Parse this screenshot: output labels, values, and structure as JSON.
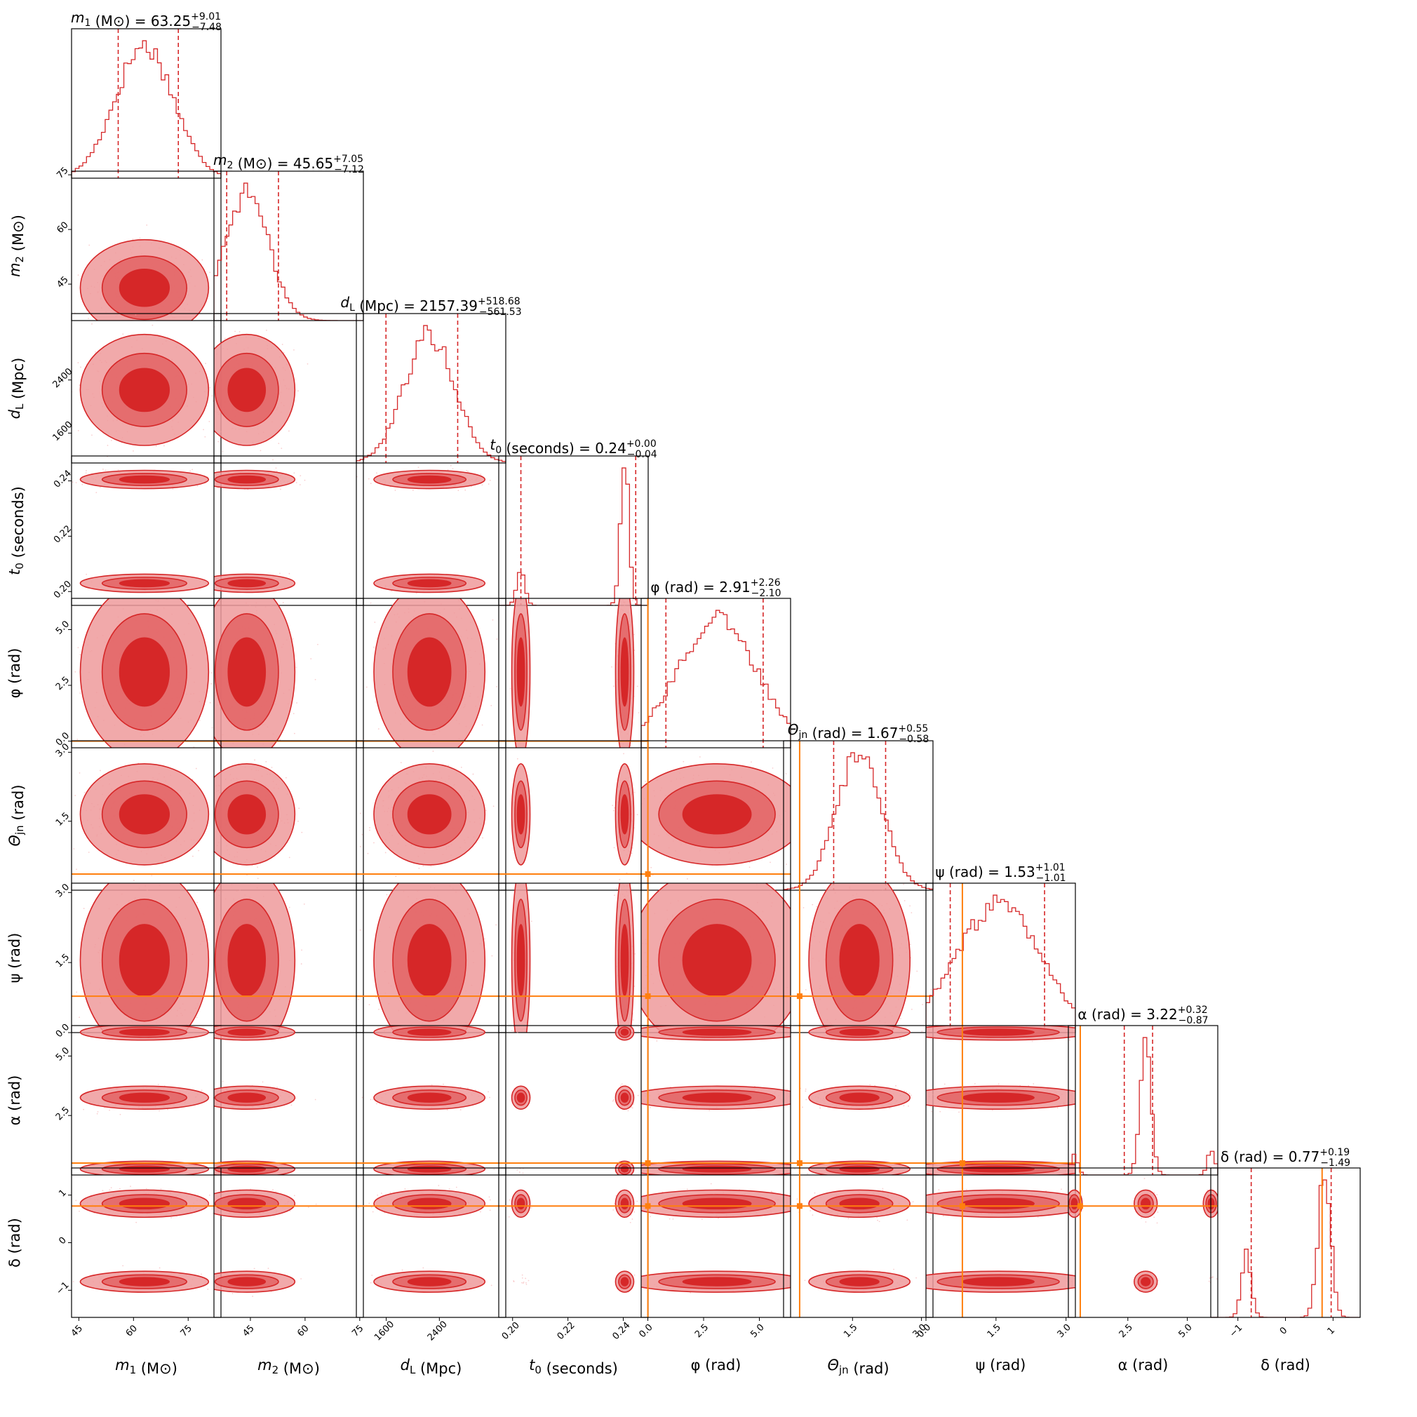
{
  "chart_data": {
    "type": "corner",
    "parameters": [
      {
        "key": "m1",
        "sym": "m",
        "sub": "1",
        "unit": "(M⊙)",
        "range": [
          43,
          84
        ],
        "ticks": [
          45,
          60,
          75
        ],
        "ticklabels": [
          "45",
          "60",
          "75"
        ],
        "median": "63.25",
        "plus": "+9.01",
        "minus": "−7.48",
        "q": [
          55.8,
          72.3
        ],
        "truth": null
      },
      {
        "key": "m2",
        "sym": "m",
        "sub": "2",
        "unit": "(M⊙)",
        "range": [
          35,
          76
        ],
        "ticks": [
          45,
          60,
          75
        ],
        "ticklabels": [
          "45",
          "60",
          "75"
        ],
        "median": "45.65",
        "plus": "+7.05",
        "minus": "−7.12",
        "q": [
          38.5,
          52.7
        ],
        "truth": null
      },
      {
        "key": "dL",
        "sym": "d",
        "sub": "L",
        "unit": "(Mpc)",
        "range": [
          1150,
          3400
        ],
        "ticks": [
          1600,
          2400
        ],
        "ticklabels": [
          "1600",
          "2400"
        ],
        "median": "2157.39",
        "plus": "+518.68",
        "minus": "−561.53",
        "q": [
          1596,
          2676
        ],
        "truth": null
      },
      {
        "key": "t0",
        "sym": "t",
        "sub": "0",
        "unit": "(seconds)",
        "range": [
          0.195,
          0.249
        ],
        "ticks": [
          0.2,
          0.22,
          0.24
        ],
        "ticklabels": [
          "0.20",
          "0.22",
          "0.24"
        ],
        "median": "0.24",
        "plus": "+0.00",
        "minus": "−0.04",
        "q": [
          0.203,
          0.2445
        ],
        "truth": null
      },
      {
        "key": "phi",
        "sym": "φ",
        "sub": "",
        "unit": "(rad)",
        "range": [
          -0.3,
          6.4
        ],
        "ticks": [
          0,
          2.5,
          5
        ],
        "ticklabels": [
          "0.0",
          "2.5",
          "5.0"
        ],
        "median": "2.91",
        "plus": "+2.26",
        "minus": "−2.10",
        "q": [
          0.81,
          5.17
        ],
        "truth": 0.0
      },
      {
        "key": "theta",
        "sym": "Θ",
        "sub": "jn",
        "unit": "(rad)",
        "range": [
          0.0,
          3.25
        ],
        "ticks": [
          1.5,
          3.0
        ],
        "ticklabels": [
          "1.5",
          "3.0"
        ],
        "median": "1.67",
        "plus": "+0.55",
        "minus": "−0.58",
        "q": [
          1.09,
          2.22
        ],
        "truth": 0.35
      },
      {
        "key": "psi",
        "sym": "ψ",
        "sub": "",
        "unit": "(rad)",
        "range": [
          0.0,
          3.2
        ],
        "ticks": [
          0,
          1.5,
          3.0
        ],
        "ticklabels": [
          "0.0",
          "1.5",
          "3.0"
        ],
        "median": "1.53",
        "plus": "+1.01",
        "minus": "−1.01",
        "q": [
          0.52,
          2.54
        ],
        "truth": 0.78
      },
      {
        "key": "alpha",
        "sym": "α",
        "sub": "",
        "unit": "(rad)",
        "range": [
          0.0,
          6.28
        ],
        "ticks": [
          2.5,
          5.0
        ],
        "ticklabels": [
          "2.5",
          "5.0"
        ],
        "median": "3.22",
        "plus": "+0.32",
        "minus": "−0.87",
        "q": [
          2.35,
          3.54
        ],
        "truth": 0.5
      },
      {
        "key": "delta",
        "sym": "δ",
        "sub": "",
        "unit": "(rad)",
        "range": [
          -1.57,
          1.57
        ],
        "ticks": [
          -1,
          0,
          1
        ],
        "ticklabels": [
          "−1",
          "0",
          "1"
        ],
        "median": "0.77",
        "plus": "+0.19",
        "minus": "−1.49",
        "q": [
          -0.72,
          0.96
        ],
        "truth": 0.77
      }
    ],
    "colors": {
      "posterior": "#d62728",
      "posterior_light": "#ef9a9b",
      "truth": "#ff7f0e"
    }
  }
}
